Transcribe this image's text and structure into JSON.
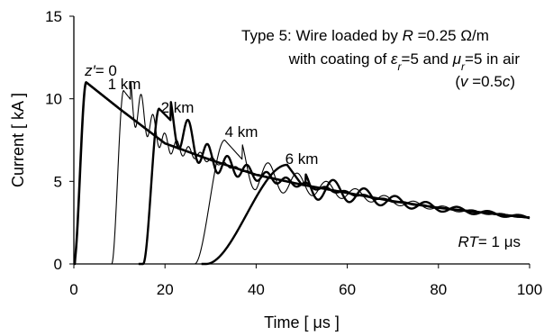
{
  "chart_data": {
    "type": "line",
    "xlabel": "Time [ μs ]",
    "ylabel": "Current [ kA ]",
    "xlim": [
      0,
      100
    ],
    "ylim": [
      0,
      15
    ],
    "xticks": [
      0,
      20,
      40,
      60,
      80,
      100
    ],
    "yticks": [
      0,
      5,
      10,
      15
    ],
    "grid": false,
    "annotation_lines": [
      [
        "Type 5: Wire loaded by ",
        {
          "t": "R",
          "i": true
        },
        " =0.25 Ω/m"
      ],
      [
        "with coating of ",
        {
          "t": "ε",
          "i": true
        },
        {
          "t": "r",
          "i": true,
          "sub": true
        },
        "=5 and ",
        {
          "t": "μ",
          "i": true
        },
        {
          "t": "r",
          "i": true,
          "sub": true
        },
        "=5 in air"
      ],
      [
        "(",
        {
          "t": "v",
          "i": true
        },
        " =0.5",
        {
          "t": "c",
          "i": true
        },
        ")"
      ],
      [
        {
          "t": "RT",
          "i": true
        },
        "= 1 μs"
      ]
    ],
    "series": [
      {
        "label": [
          {
            "t": "z′",
            "i": true
          },
          "= 0"
        ],
        "onset": 0.3,
        "rise": 2.4,
        "peak": 11.0,
        "osc_amp": 0.0,
        "osc_period": 0,
        "stroke_width": 2.6,
        "points": [
          [
            0,
            0
          ],
          [
            2.7,
            11.0
          ],
          [
            10,
            9.4
          ],
          [
            20,
            7.3
          ],
          [
            30,
            6.3
          ],
          [
            40,
            5.4
          ],
          [
            50,
            4.8
          ],
          [
            60,
            4.3
          ],
          [
            70,
            3.8
          ],
          [
            80,
            3.4
          ],
          [
            90,
            3.1
          ],
          [
            100,
            2.8
          ]
        ]
      },
      {
        "label": [
          "1 km"
        ],
        "onset": 8.3,
        "rise": 2.6,
        "peak": 10.5,
        "osc_amp": 1.8,
        "osc_period": 2.6,
        "stroke_width": 1.1,
        "points": [
          [
            8.3,
            0
          ],
          [
            10.9,
            10.5
          ],
          [
            20,
            7.3
          ],
          [
            30,
            6.3
          ],
          [
            40,
            5.4
          ],
          [
            50,
            4.8
          ],
          [
            60,
            4.3
          ],
          [
            70,
            3.8
          ],
          [
            80,
            3.4
          ],
          [
            90,
            3.1
          ],
          [
            100,
            2.8
          ]
        ]
      },
      {
        "label": [
          "2 km"
        ],
        "onset": 15.2,
        "rise": 3.5,
        "peak": 9.4,
        "osc_amp": 1.7,
        "osc_period": 4.3,
        "stroke_width": 2.4,
        "points": [
          [
            15.2,
            0
          ],
          [
            18.7,
            9.4
          ],
          [
            30,
            6.3
          ],
          [
            40,
            5.4
          ],
          [
            50,
            4.8
          ],
          [
            60,
            4.3
          ],
          [
            70,
            3.8
          ],
          [
            80,
            3.4
          ],
          [
            90,
            3.1
          ],
          [
            100,
            2.8
          ]
        ]
      },
      {
        "label": [
          "4 km"
        ],
        "onset": 26.5,
        "rise": 6.6,
        "peak": 7.5,
        "osc_amp": 1.4,
        "osc_period": 6.4,
        "stroke_width": 1.1,
        "points": [
          [
            26.5,
            0
          ],
          [
            33.1,
            7.5
          ],
          [
            40,
            5.4
          ],
          [
            50,
            4.8
          ],
          [
            60,
            4.3
          ],
          [
            70,
            3.8
          ],
          [
            80,
            3.4
          ],
          [
            90,
            3.1
          ],
          [
            100,
            2.8
          ]
        ]
      },
      {
        "label": [
          "6 km"
        ],
        "onset": 29.0,
        "rise": 17.8,
        "peak": 6.0,
        "osc_amp": 1.0,
        "osc_period": 6.8,
        "stroke_width": 2.4,
        "points": [
          [
            29.0,
            0
          ],
          [
            46.8,
            6.0
          ],
          [
            50,
            4.8
          ],
          [
            60,
            4.3
          ],
          [
            70,
            3.8
          ],
          [
            80,
            3.4
          ],
          [
            90,
            3.1
          ],
          [
            100,
            2.8
          ]
        ]
      }
    ]
  }
}
